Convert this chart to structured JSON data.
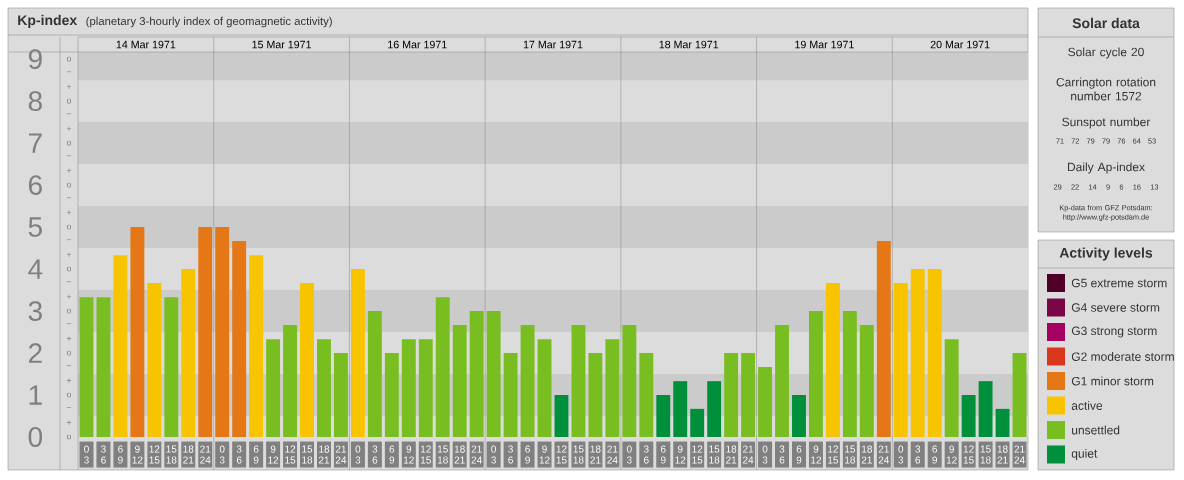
{
  "chart_data": [
    {
      "type": "bar",
      "title": "Kp-index",
      "subtitle": "(planetary 3-hourly index of geomagnetic activity)",
      "categories": [
        "0 3",
        "3 6",
        "6 9",
        "9 12",
        "12 15",
        "15 18",
        "18 21",
        "21 24",
        "0 3",
        "3 6",
        "6 9",
        "9 12",
        "12 15",
        "15 18",
        "18 21",
        "21 24",
        "0 3",
        "3 6",
        "6 9",
        "9 12",
        "12 15",
        "15 18",
        "18 21",
        "21 24",
        "0 3",
        "3 6",
        "6 9",
        "9 12",
        "12 15",
        "15 18",
        "18 21",
        "21 24",
        "0 3",
        "3 6",
        "6 9",
        "9 12",
        "12 15",
        "15 18",
        "18 21",
        "21 24",
        "0 3",
        "3 6",
        "6 9",
        "9 12",
        "12 15",
        "15 18",
        "18 21",
        "21 24",
        "0 3",
        "3 6",
        "6 9",
        "9 12",
        "12 15",
        "15 18",
        "18 21",
        "21 24"
      ],
      "annotations": [
        "14 Mar 1971",
        "15 Mar 1971",
        "16 Mar 1971",
        "17 Mar 1971",
        "18 Mar 1971",
        "19 Mar 1971",
        "20 Mar 1971"
      ],
      "stacked": true,
      "legend": "right",
      "legend_title": "Activity levels",
      "series": [
        {
          "name": "G5 extreme storm",
          "color": "#500028",
          "values": [
            null,
            null,
            null,
            null,
            null,
            null,
            null,
            null,
            null,
            null,
            null,
            null,
            null,
            null,
            null,
            null,
            null,
            null,
            null,
            null,
            null,
            null,
            null,
            null,
            null,
            null,
            null,
            null,
            null,
            null,
            null,
            null,
            null,
            null,
            null,
            null,
            null,
            null,
            null,
            null,
            null,
            null,
            null,
            null,
            null,
            null,
            null,
            null,
            null,
            null,
            null,
            null,
            null,
            null,
            null,
            null
          ]
        },
        {
          "name": "G4 severe storm",
          "color": "#7b0645",
          "values": [
            null,
            null,
            null,
            null,
            null,
            null,
            null,
            null,
            null,
            null,
            null,
            null,
            null,
            null,
            null,
            null,
            null,
            null,
            null,
            null,
            null,
            null,
            null,
            null,
            null,
            null,
            null,
            null,
            null,
            null,
            null,
            null,
            null,
            null,
            null,
            null,
            null,
            null,
            null,
            null,
            null,
            null,
            null,
            null,
            null,
            null,
            null,
            null,
            null,
            null,
            null,
            null,
            null,
            null,
            null,
            null
          ]
        },
        {
          "name": "G3 strong storm",
          "color": "#a3005f",
          "values": [
            null,
            null,
            null,
            null,
            null,
            null,
            null,
            null,
            null,
            null,
            null,
            null,
            null,
            null,
            null,
            null,
            null,
            null,
            null,
            null,
            null,
            null,
            null,
            null,
            null,
            null,
            null,
            null,
            null,
            null,
            null,
            null,
            null,
            null,
            null,
            null,
            null,
            null,
            null,
            null,
            null,
            null,
            null,
            null,
            null,
            null,
            null,
            null,
            null,
            null,
            null,
            null,
            null,
            null,
            null,
            null
          ]
        },
        {
          "name": "G2 moderate storm",
          "color": "#d9361d",
          "values": [
            null,
            null,
            null,
            null,
            null,
            null,
            null,
            null,
            null,
            null,
            null,
            null,
            null,
            null,
            null,
            null,
            null,
            null,
            null,
            null,
            null,
            null,
            null,
            null,
            null,
            null,
            null,
            null,
            null,
            null,
            null,
            null,
            null,
            null,
            null,
            null,
            null,
            null,
            null,
            null,
            null,
            null,
            null,
            null,
            null,
            null,
            null,
            null,
            null,
            null,
            null,
            null,
            null,
            null,
            null,
            null
          ]
        },
        {
          "name": "G1 minor storm",
          "color": "#e57716",
          "values": [
            null,
            null,
            null,
            5,
            null,
            null,
            null,
            5,
            5,
            4.67,
            null,
            null,
            null,
            null,
            null,
            null,
            null,
            null,
            null,
            null,
            null,
            null,
            null,
            null,
            null,
            null,
            null,
            null,
            null,
            null,
            null,
            null,
            null,
            null,
            null,
            null,
            null,
            null,
            null,
            null,
            null,
            null,
            null,
            null,
            null,
            null,
            null,
            4.67,
            null,
            null,
            null,
            null,
            null,
            null,
            null,
            null
          ]
        },
        {
          "name": "active",
          "color": "#f8c400",
          "values": [
            null,
            null,
            4.33,
            null,
            3.67,
            null,
            4,
            null,
            null,
            null,
            4.33,
            null,
            null,
            3.67,
            null,
            null,
            4,
            null,
            null,
            null,
            null,
            null,
            null,
            null,
            null,
            null,
            null,
            null,
            null,
            null,
            null,
            null,
            null,
            null,
            null,
            null,
            null,
            null,
            null,
            null,
            null,
            null,
            null,
            null,
            3.67,
            null,
            null,
            null,
            3.67,
            4,
            4,
            null,
            null,
            null,
            null,
            null
          ]
        },
        {
          "name": "unsettled",
          "color": "#79be21",
          "values": [
            3.33,
            3.33,
            null,
            null,
            null,
            3.33,
            null,
            null,
            null,
            null,
            null,
            2.33,
            2.67,
            null,
            2.33,
            2,
            null,
            3,
            2,
            2.33,
            2.33,
            3.33,
            2.67,
            3,
            3,
            2,
            2.67,
            2.33,
            null,
            2.67,
            2,
            2.33,
            2.67,
            2,
            null,
            null,
            null,
            null,
            2,
            2,
            1.67,
            2.67,
            null,
            3,
            null,
            3,
            2.67,
            null,
            null,
            null,
            null,
            2.33,
            null,
            null,
            null,
            2
          ]
        },
        {
          "name": "quiet",
          "color": "#008f3b",
          "values": [
            null,
            null,
            null,
            null,
            null,
            null,
            null,
            null,
            null,
            null,
            null,
            null,
            null,
            null,
            null,
            null,
            null,
            null,
            null,
            null,
            null,
            null,
            null,
            null,
            null,
            null,
            null,
            null,
            1,
            null,
            null,
            null,
            null,
            null,
            1,
            1.33,
            0.67,
            1.33,
            null,
            null,
            null,
            null,
            1,
            null,
            null,
            null,
            null,
            null,
            null,
            null,
            null,
            null,
            1,
            1.33,
            0.67,
            null
          ]
        }
      ],
      "ylim": [
        0,
        9.17
      ],
      "yticks": [
        0,
        1,
        2,
        3,
        4,
        5,
        6,
        7,
        8,
        9
      ],
      "bands": [
        {
          "axis": "y",
          "from": 0.5,
          "to": 1.5,
          "color": "#cbcbcb"
        },
        {
          "axis": "y",
          "from": 2.5,
          "to": 3.5,
          "color": "#cbcbcb"
        },
        {
          "axis": "y",
          "from": 4.5,
          "to": 5.5,
          "color": "#cbcbcb"
        },
        {
          "axis": "y",
          "from": 6.5,
          "to": 7.5,
          "color": "#cbcbcb"
        },
        {
          "axis": "y",
          "from": 8.5,
          "to": 9.17,
          "color": "#cbcbcb"
        }
      ]
    },
    {
      "type": "other",
      "annotations": [
        "o",
        "−",
        "+",
        "o",
        "−",
        "+",
        "o",
        "−",
        "+",
        "o",
        "−",
        "+",
        "o",
        "−",
        "+",
        "o",
        "−",
        "+",
        "o",
        "−",
        "+",
        "o",
        "−",
        "+",
        "o",
        "−",
        "+",
        "o"
      ]
    },
    {
      "type": "other",
      "title": "Solar data",
      "annotations": [
        "Solar cycle 20",
        "Carrington rotation number 1572",
        "Sunspot number",
        "71 72 79 79 76 64 53",
        "Daily Ap-index",
        "29 22 14 9 6 16 13",
        "Kp-data from GFZ Potsdam: http://www.gfz-potsdam.de"
      ]
    }
  ]
}
